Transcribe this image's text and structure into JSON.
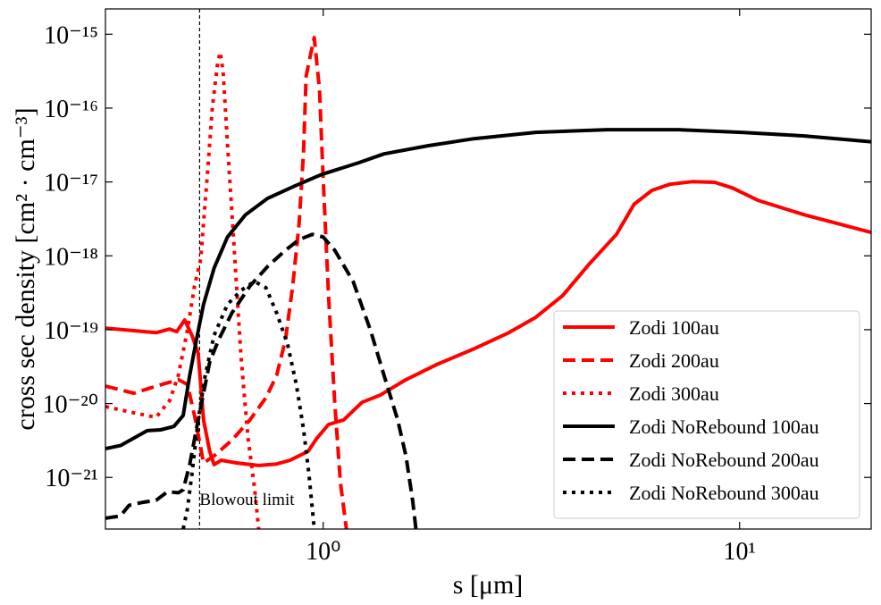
{
  "chart_data": {
    "type": "line",
    "x_label": "s [μm]",
    "y_label": "cross sec density [cm² · cm⁻³]",
    "xlog": true,
    "ylog": true,
    "xlim": [
      0.3,
      20.7
    ],
    "ylim": [
      2e-22,
      2.2e-15
    ],
    "xticks": [
      {
        "value": 1,
        "label": "10⁰"
      },
      {
        "value": 10,
        "label": "10¹"
      }
    ],
    "yticks": [
      {
        "value": 1e-21,
        "label": "10⁻²¹"
      },
      {
        "value": 1e-20,
        "label": "10⁻²⁰"
      },
      {
        "value": 1e-19,
        "label": "10⁻¹⁹"
      },
      {
        "value": 1e-18,
        "label": "10⁻¹⁸"
      },
      {
        "value": 1e-17,
        "label": "10⁻¹⁷"
      },
      {
        "value": 1e-16,
        "label": "10⁻¹⁶"
      },
      {
        "value": 1e-15,
        "label": "10⁻¹⁵"
      }
    ],
    "legend": "lower right",
    "annotations": [
      {
        "text": "Blowout limit",
        "x": 0.505
      }
    ],
    "series": [
      {
        "name": "Zodi 100au",
        "color": "#ff0000",
        "style": "solid",
        "x": [
          0.3,
          0.351,
          0.397,
          0.428,
          0.445,
          0.465,
          0.484,
          0.501,
          0.516,
          0.534,
          0.547,
          0.569,
          0.619,
          0.7,
          0.773,
          0.833,
          0.875,
          0.92,
          0.966,
          1.03,
          1.12,
          1.24,
          1.37,
          1.58,
          1.88,
          2.3,
          2.79,
          3.24,
          3.76,
          4.36,
          5.06,
          5.58,
          6.16,
          6.8,
          7.7,
          8.71,
          9.61,
          11.1,
          14.3,
          20.7
        ],
        "values": [
          1.05e-19,
          9.7e-20,
          9.1e-20,
          1.02e-19,
          9.4e-20,
          1.35e-19,
          8.4e-20,
          4.8e-20,
          6e-21,
          2.25e-21,
          1.49e-21,
          1.71e-21,
          1.57e-21,
          1.45e-21,
          1.52e-21,
          1.71e-21,
          1.96e-21,
          2.25e-21,
          3.4e-21,
          5.2e-21,
          6e-21,
          1.04e-20,
          1.3e-20,
          2.1e-20,
          3.4e-20,
          5.5e-20,
          9.1e-20,
          1.47e-19,
          2.9e-19,
          7.8e-19,
          1.95e-18,
          5e-18,
          7.7e-18,
          9.3e-18,
          1.01e-17,
          9.9e-18,
          8.3e-18,
          5.6e-18,
          3.6e-18,
          2.07e-18
        ]
      },
      {
        "name": "Zodi 200au",
        "color": "#ff0000",
        "style": "dashed",
        "x": [
          0.3,
          0.351,
          0.397,
          0.449,
          0.472,
          0.491,
          0.516,
          0.547,
          0.604,
          0.667,
          0.729,
          0.773,
          0.812,
          0.845,
          0.875,
          0.897,
          0.91,
          0.933,
          0.952,
          0.98,
          1.0,
          1.03,
          1.066,
          1.1,
          1.137
        ],
        "values": [
          1.72e-20,
          1.38e-20,
          1.72e-20,
          2.1e-20,
          1.82e-20,
          6.9e-21,
          1.57e-21,
          1.96e-21,
          3.2e-21,
          6e-21,
          1.2e-20,
          2.4e-20,
          7.3e-20,
          3.9e-19,
          2.7e-18,
          2.5e-17,
          2.7e-16,
          5.4e-16,
          9e-16,
          1.78e-16,
          1.1e-17,
          2.9e-19,
          1.04e-20,
          8.5e-22,
          2e-22
        ]
      },
      {
        "name": "Zodi 300au",
        "color": "#ff0000",
        "style": "dotted",
        "x": [
          0.3,
          0.351,
          0.397,
          0.428,
          0.449,
          0.472,
          0.491,
          0.508,
          0.526,
          0.542,
          0.558,
          0.566,
          0.575,
          0.589,
          0.61,
          0.635,
          0.66,
          0.684,
          0.7
        ],
        "values": [
          9.1e-21,
          7.5e-21,
          6.5e-21,
          1.1e-20,
          2.4e-20,
          9.7e-20,
          3.9e-19,
          9e-19,
          1.1e-17,
          1.02e-16,
          4.1e-16,
          5.7e-16,
          3.1e-16,
          3.3e-17,
          1.57e-18,
          4.2e-20,
          3.4e-21,
          7.4e-22,
          2e-22
        ]
      },
      {
        "name": "Zodi NoRebound 100au",
        "color": "#000000",
        "style": "solid",
        "x": [
          0.3,
          0.326,
          0.351,
          0.378,
          0.407,
          0.438,
          0.461,
          0.478,
          0.496,
          0.516,
          0.547,
          0.589,
          0.651,
          0.736,
          0.854,
          0.99,
          1.21,
          1.4,
          1.79,
          2.3,
          3.24,
          4.81,
          7.14,
          10.1,
          14.3,
          20.7
        ],
        "values": [
          2.45e-21,
          2.7e-21,
          3.4e-21,
          4.3e-21,
          4.4e-21,
          4.9e-21,
          6.9e-21,
          2.4e-20,
          7.3e-20,
          2.2e-19,
          6.8e-19,
          1.8e-18,
          3.6e-18,
          6e-18,
          8.8e-18,
          1.26e-17,
          1.8e-17,
          2.4e-17,
          3.1e-17,
          3.85e-17,
          4.7e-17,
          5.1e-17,
          5.1e-17,
          4.7e-17,
          4.2e-17,
          3.5e-17
        ]
      },
      {
        "name": "Zodi NoRebound 200au",
        "color": "#000000",
        "style": "dashed",
        "x": [
          0.3,
          0.326,
          0.342,
          0.369,
          0.397,
          0.423,
          0.449,
          0.461,
          0.478,
          0.496,
          0.516,
          0.534,
          0.561,
          0.604,
          0.667,
          0.736,
          0.812,
          0.875,
          0.942,
          1.0,
          1.066,
          1.18,
          1.3,
          1.4,
          1.51,
          1.58,
          1.64,
          1.67
        ],
        "values": [
          2.8e-22,
          3e-22,
          4.2e-22,
          4.6e-22,
          4.9e-22,
          6.4e-22,
          6.2e-22,
          6.8e-22,
          1.49e-21,
          4.5e-21,
          1.38e-20,
          3.65e-20,
          7.3e-20,
          1.69e-19,
          3.9e-19,
          7.2e-19,
          1.19e-18,
          1.66e-18,
          1.95e-18,
          1.8e-18,
          1.19e-18,
          4.5e-19,
          9.7e-20,
          2.4e-20,
          6e-21,
          1.96e-21,
          4.9e-22,
          2e-22
        ]
      },
      {
        "name": "Zodi NoRebound 300au",
        "color": "#000000",
        "style": "dotted",
        "x": [
          0.461,
          0.472,
          0.484,
          0.501,
          0.521,
          0.547,
          0.589,
          0.635,
          0.684,
          0.729,
          0.773,
          0.821,
          0.862,
          0.897,
          0.924,
          0.942,
          0.952
        ],
        "values": [
          2e-22,
          3.7e-22,
          1.12e-21,
          6e-21,
          2.4e-20,
          8.4e-20,
          2.2e-19,
          3.4e-19,
          4.5e-19,
          3.7e-19,
          1.69e-19,
          6.4e-20,
          1.82e-20,
          4.5e-21,
          1.12e-21,
          3.7e-22,
          2e-22
        ]
      }
    ]
  }
}
